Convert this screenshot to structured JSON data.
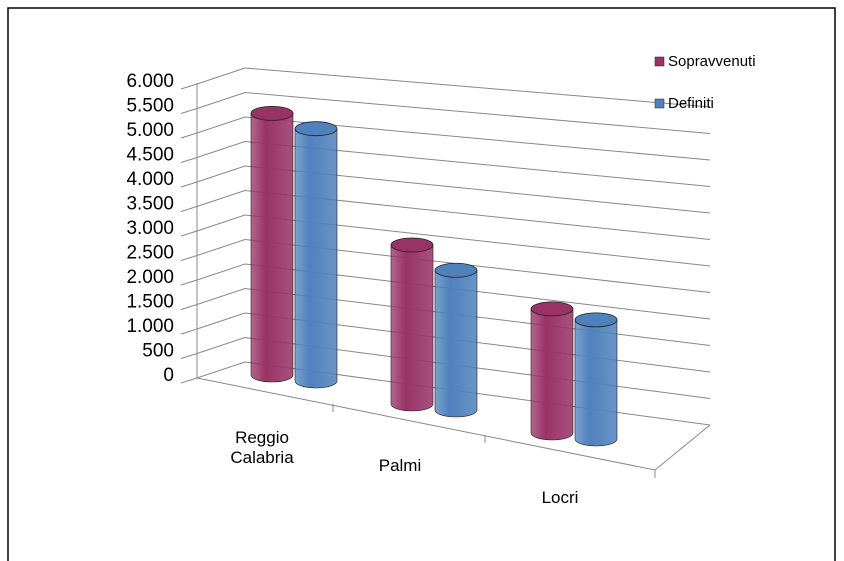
{
  "chart_data": {
    "type": "bar3d",
    "categories": [
      "Reggio Calabria",
      "Palmi",
      "Locri"
    ],
    "series": [
      {
        "name": "Sopravvenuti",
        "color": "#993366",
        "values": [
          5600,
          3300,
          2500
        ]
      },
      {
        "name": "Definiti",
        "color": "#4f81bd",
        "values": [
          5400,
          2900,
          2400
        ]
      }
    ],
    "ylim": [
      0,
      6000
    ],
    "yticks": [
      0,
      500,
      {
        "value": 1000,
        "label": "1.000"
      },
      {
        "value": 1500,
        "label": "1.500"
      },
      {
        "value": 2000,
        "label": "2.000"
      },
      {
        "value": 2500,
        "label": "2.500"
      },
      {
        "value": 3000,
        "label": "3.000"
      },
      {
        "value": 3500,
        "label": "3.500"
      },
      {
        "value": 4000,
        "label": "4.000"
      },
      {
        "value": 4500,
        "label": "4.500"
      },
      {
        "value": 5000,
        "label": "5.000"
      },
      {
        "value": 5500,
        "label": "5.500"
      },
      {
        "value": 6000,
        "label": "6.000"
      }
    ],
    "grid": true
  }
}
